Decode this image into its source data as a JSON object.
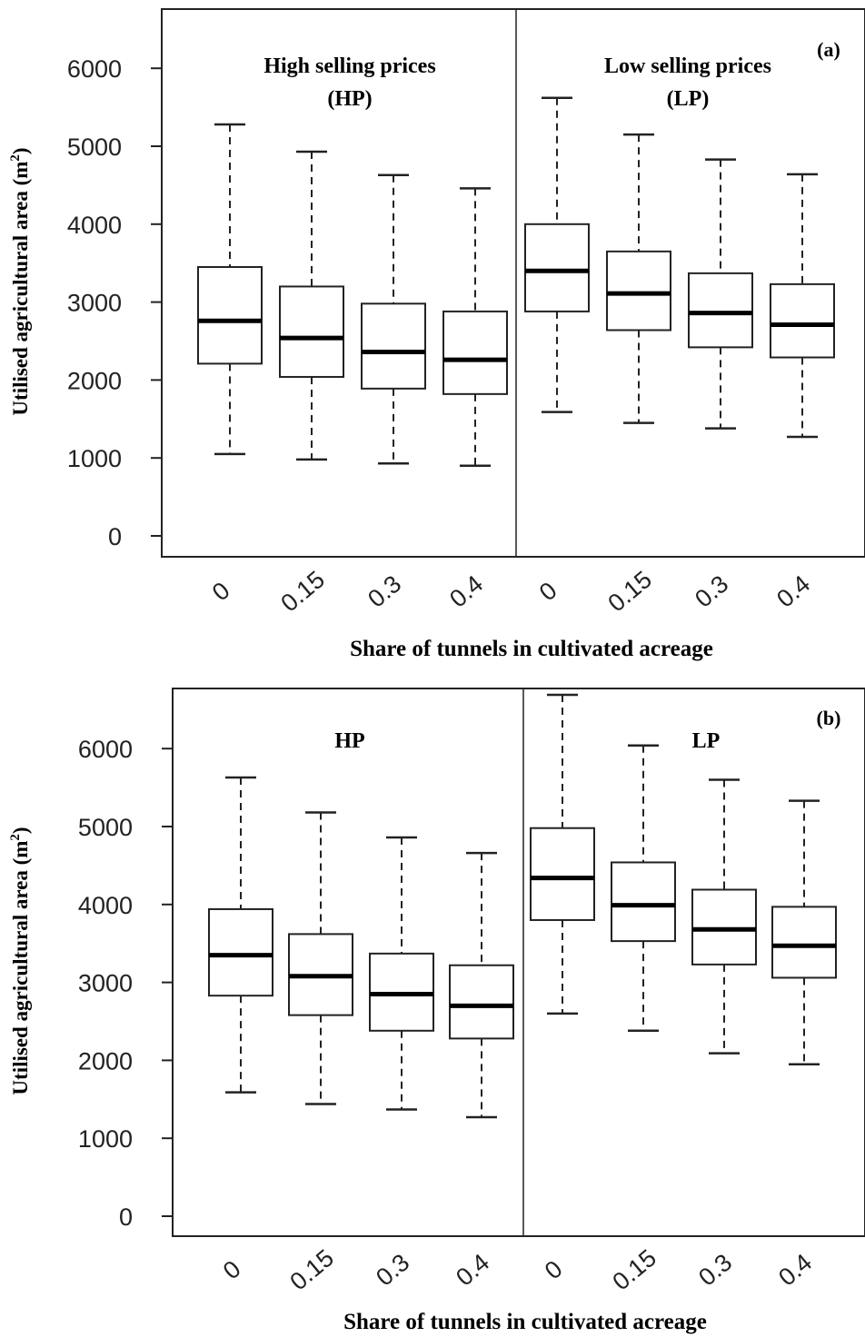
{
  "chart_data": [
    {
      "type": "boxplot",
      "panel_label": "(a)",
      "ylabel": "Utilised agricultural area (m",
      "ylabel_sup": "2",
      "ylabel_close": ")",
      "xlabel": "Share of tunnels in cultivated acreage",
      "yticks": [
        "0",
        "1000",
        "2000",
        "3000",
        "4000",
        "5000",
        "6000"
      ],
      "ylim": [
        0,
        6500
      ],
      "groups": [
        {
          "title_line1": "High selling prices",
          "title_line2": "(HP)",
          "categories": [
            "0",
            "0.15",
            "0.3",
            "0.4"
          ],
          "boxes": [
            {
              "min": 1050,
              "q1": 2210,
              "median": 2760,
              "q3": 3450,
              "max": 5280
            },
            {
              "min": 980,
              "q1": 2040,
              "median": 2540,
              "q3": 3200,
              "max": 4930
            },
            {
              "min": 930,
              "q1": 1890,
              "median": 2360,
              "q3": 2980,
              "max": 4630
            },
            {
              "min": 900,
              "q1": 1820,
              "median": 2260,
              "q3": 2880,
              "max": 4460
            }
          ]
        },
        {
          "title_line1": "Low selling prices",
          "title_line2": "(LP)",
          "categories": [
            "0",
            "0.15",
            "0.3",
            "0.4"
          ],
          "boxes": [
            {
              "min": 1590,
              "q1": 2880,
              "median": 3400,
              "q3": 4000,
              "max": 5620
            },
            {
              "min": 1450,
              "q1": 2640,
              "median": 3110,
              "q3": 3650,
              "max": 5150
            },
            {
              "min": 1380,
              "q1": 2420,
              "median": 2860,
              "q3": 3370,
              "max": 4830
            },
            {
              "min": 1270,
              "q1": 2290,
              "median": 2710,
              "q3": 3230,
              "max": 4640
            }
          ]
        }
      ]
    },
    {
      "type": "boxplot",
      "panel_label": "(b)",
      "ylabel": "Utilised agricultural area (m",
      "ylabel_sup": "2",
      "ylabel_close": ")",
      "xlabel": "Share of tunnels in cultivated acreage",
      "yticks": [
        "0",
        "1000",
        "2000",
        "3000",
        "4000",
        "5000",
        "6000"
      ],
      "ylim": [
        0,
        6750
      ],
      "groups": [
        {
          "title_line1": "HP",
          "title_line2": "",
          "categories": [
            "0",
            "0.15",
            "0.3",
            "0.4"
          ],
          "boxes": [
            {
              "min": 1590,
              "q1": 2830,
              "median": 3350,
              "q3": 3940,
              "max": 5630
            },
            {
              "min": 1440,
              "q1": 2580,
              "median": 3080,
              "q3": 3620,
              "max": 5180
            },
            {
              "min": 1370,
              "q1": 2380,
              "median": 2850,
              "q3": 3370,
              "max": 4860
            },
            {
              "min": 1270,
              "q1": 2280,
              "median": 2700,
              "q3": 3220,
              "max": 4660
            }
          ]
        },
        {
          "title_line1": "LP",
          "title_line2": "",
          "categories": [
            "0",
            "0.15",
            "0.3",
            "0.4"
          ],
          "boxes": [
            {
              "min": 2600,
              "q1": 3800,
              "median": 4340,
              "q3": 4980,
              "max": 6690
            },
            {
              "min": 2380,
              "q1": 3530,
              "median": 3990,
              "q3": 4540,
              "max": 6040
            },
            {
              "min": 2090,
              "q1": 3230,
              "median": 3680,
              "q3": 4190,
              "max": 5600
            },
            {
              "min": 1950,
              "q1": 3060,
              "median": 3470,
              "q3": 3970,
              "max": 5330
            }
          ]
        }
      ]
    }
  ]
}
